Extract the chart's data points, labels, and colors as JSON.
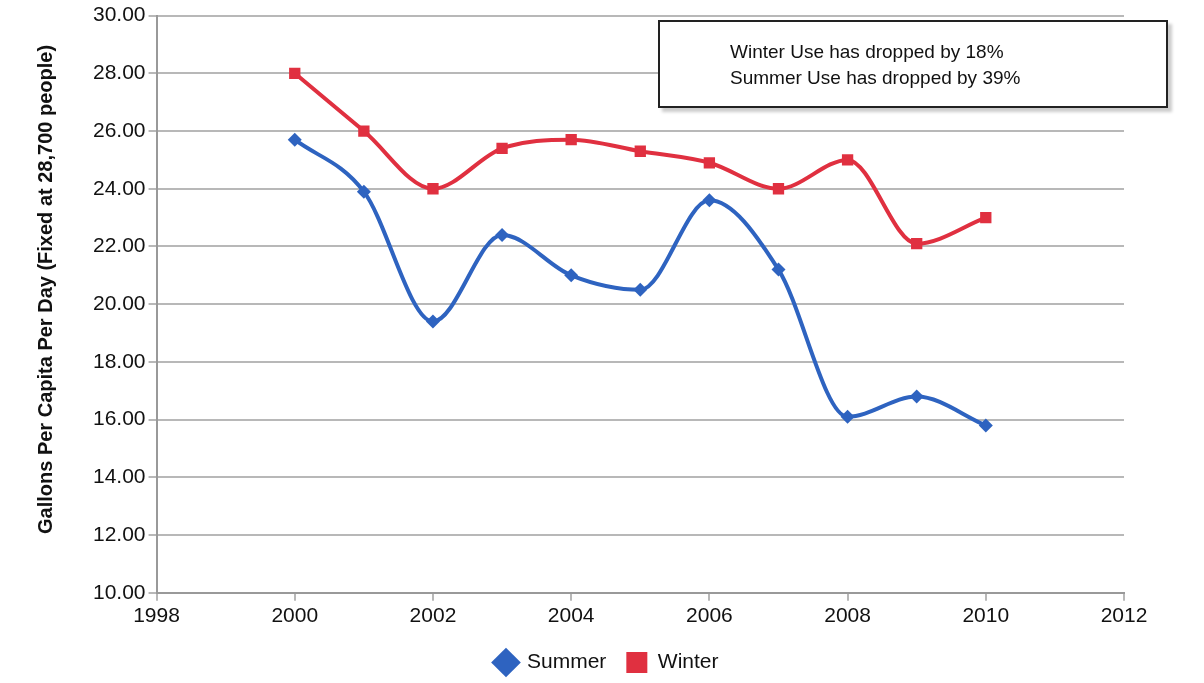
{
  "chart_data": {
    "type": "line",
    "ylabel": "Gallons Per Capita Per Day (Fixed at 28,700 people)",
    "annotations": [
      "Winter Use has dropped by 18%",
      "Summer Use has dropped by 39%"
    ],
    "x": [
      2000,
      2001,
      2002,
      2003,
      2004,
      2005,
      2006,
      2007,
      2008,
      2009,
      2010
    ],
    "series": [
      {
        "name": "Summer",
        "color": "#2e63c0",
        "marker": "diamond",
        "values": [
          25.7,
          23.9,
          19.4,
          22.4,
          21.0,
          20.5,
          23.6,
          21.2,
          16.1,
          16.8,
          15.8
        ]
      },
      {
        "name": "Winter",
        "color": "#e03040",
        "marker": "square",
        "values": [
          28.0,
          26.0,
          24.0,
          25.4,
          25.7,
          25.3,
          24.9,
          24.0,
          25.0,
          22.1,
          23.0
        ]
      }
    ],
    "xlim": [
      1998,
      2012
    ],
    "xticks": [
      1998,
      2000,
      2002,
      2004,
      2006,
      2008,
      2010,
      2012
    ],
    "ylim": [
      10,
      30
    ],
    "yticks": [
      {
        "value": 10,
        "label": "10.00"
      },
      {
        "value": 12,
        "label": "12.00"
      },
      {
        "value": 14,
        "label": "14.00"
      },
      {
        "value": 16,
        "label": "16.00"
      },
      {
        "value": 18,
        "label": "18.00"
      },
      {
        "value": 20,
        "label": "20.00"
      },
      {
        "value": 22,
        "label": "22.00"
      },
      {
        "value": 24,
        "label": "24.00"
      },
      {
        "value": 26,
        "label": "26.00"
      },
      {
        "value": 28,
        "label": "28.00"
      },
      {
        "value": 30,
        "label": "30.00"
      }
    ],
    "grid": "y",
    "legend": "bottom",
    "line_style": "solid"
  }
}
